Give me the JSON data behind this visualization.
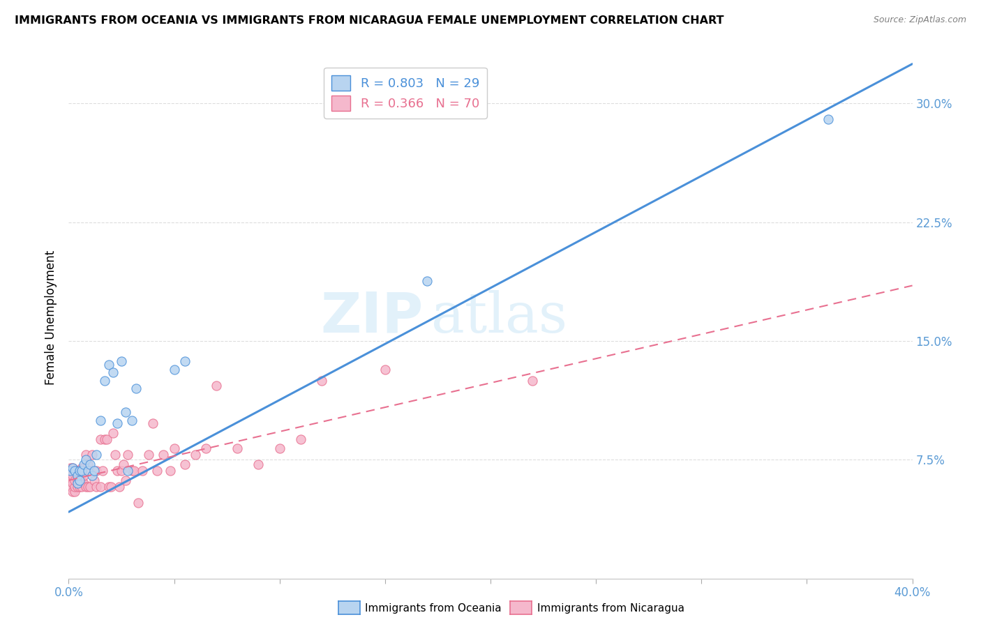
{
  "title": "IMMIGRANTS FROM OCEANIA VS IMMIGRANTS FROM NICARAGUA FEMALE UNEMPLOYMENT CORRELATION CHART",
  "source": "Source: ZipAtlas.com",
  "ylabel": "Female Unemployment",
  "ytick_values": [
    0.075,
    0.15,
    0.225,
    0.3
  ],
  "ytick_labels": [
    "7.5%",
    "15.0%",
    "22.5%",
    "30.0%"
  ],
  "legend1_R": "0.803",
  "legend1_N": "29",
  "legend2_R": "0.366",
  "legend2_N": "70",
  "oceania_color": "#b8d4f0",
  "nicaragua_color": "#f5b8cc",
  "trendline1_color": "#4a90d9",
  "trendline2_color": "#e87090",
  "xlim": [
    0.0,
    0.4
  ],
  "ylim": [
    0.0,
    0.33
  ],
  "oceania_x": [
    0.001,
    0.002,
    0.003,
    0.004,
    0.004,
    0.005,
    0.005,
    0.006,
    0.007,
    0.008,
    0.009,
    0.01,
    0.011,
    0.012,
    0.013,
    0.015,
    0.017,
    0.019,
    0.021,
    0.023,
    0.025,
    0.027,
    0.028,
    0.03,
    0.032,
    0.05,
    0.055,
    0.17,
    0.36
  ],
  "oceania_y": [
    0.068,
    0.07,
    0.068,
    0.06,
    0.065,
    0.062,
    0.068,
    0.068,
    0.072,
    0.075,
    0.068,
    0.072,
    0.065,
    0.068,
    0.078,
    0.1,
    0.125,
    0.135,
    0.13,
    0.098,
    0.137,
    0.105,
    0.068,
    0.1,
    0.12,
    0.132,
    0.137,
    0.188,
    0.29
  ],
  "nicaragua_x": [
    0.001,
    0.001,
    0.001,
    0.001,
    0.002,
    0.002,
    0.002,
    0.002,
    0.003,
    0.003,
    0.003,
    0.003,
    0.004,
    0.004,
    0.004,
    0.005,
    0.005,
    0.005,
    0.006,
    0.006,
    0.006,
    0.007,
    0.007,
    0.007,
    0.008,
    0.008,
    0.009,
    0.009,
    0.01,
    0.01,
    0.011,
    0.012,
    0.013,
    0.013,
    0.015,
    0.015,
    0.016,
    0.017,
    0.018,
    0.019,
    0.02,
    0.021,
    0.022,
    0.023,
    0.024,
    0.025,
    0.026,
    0.027,
    0.028,
    0.03,
    0.031,
    0.033,
    0.035,
    0.038,
    0.04,
    0.042,
    0.045,
    0.048,
    0.05,
    0.055,
    0.06,
    0.065,
    0.07,
    0.08,
    0.09,
    0.1,
    0.11,
    0.12,
    0.15,
    0.22
  ],
  "nicaragua_y": [
    0.058,
    0.062,
    0.065,
    0.07,
    0.055,
    0.06,
    0.065,
    0.07,
    0.055,
    0.058,
    0.062,
    0.068,
    0.058,
    0.062,
    0.068,
    0.058,
    0.062,
    0.068,
    0.058,
    0.062,
    0.07,
    0.06,
    0.065,
    0.07,
    0.058,
    0.078,
    0.058,
    0.072,
    0.058,
    0.068,
    0.078,
    0.062,
    0.058,
    0.068,
    0.058,
    0.088,
    0.068,
    0.088,
    0.088,
    0.058,
    0.058,
    0.092,
    0.078,
    0.068,
    0.058,
    0.068,
    0.072,
    0.062,
    0.078,
    0.068,
    0.068,
    0.048,
    0.068,
    0.078,
    0.098,
    0.068,
    0.078,
    0.068,
    0.082,
    0.072,
    0.078,
    0.082,
    0.122,
    0.082,
    0.072,
    0.082,
    0.088,
    0.125,
    0.132,
    0.125
  ],
  "trendline1_x": [
    0.0,
    0.4
  ],
  "trendline1_y": [
    0.042,
    0.325
  ],
  "trendline2_x": [
    0.0,
    0.4
  ],
  "trendline2_y": [
    0.062,
    0.185
  ]
}
